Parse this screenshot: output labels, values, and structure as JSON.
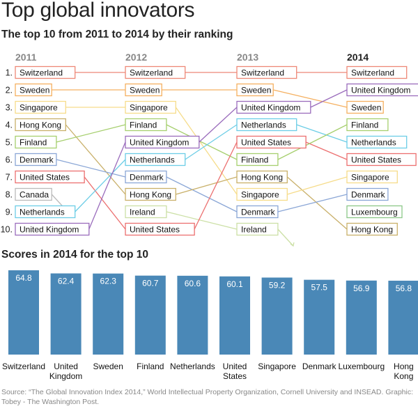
{
  "title": "Top global innovators",
  "subtitle": "The top 10 from 2011 to 2014 by their ranking",
  "section2_title": "Scores in 2014 for the top 10",
  "source_text": "Source: “The Global Innovation Index 2014,” World Intellectual Property Organization, Cornell University and INSEAD. Graphic: Tobey - The Washington Post.",
  "chart_data": [
    {
      "type": "bump",
      "years": [
        "2011",
        "2012",
        "2013",
        "2014"
      ],
      "rank_labels": [
        "1.",
        "2.",
        "3.",
        "4.",
        "5.",
        "6.",
        "7.",
        "8.",
        "9.",
        "10."
      ],
      "rankings": {
        "2011": [
          "Switzerland",
          "Sweden",
          "Singapore",
          "Hong Kong",
          "Finland",
          "Denmark",
          "United States",
          "Canada",
          "Netherlands",
          "United Kingdom"
        ],
        "2012": [
          "Switzerland",
          "Sweden",
          "Singapore",
          "Finland",
          "United Kingdom",
          "Netherlands",
          "Denmark",
          "Hong Kong",
          "Ireland",
          "United States"
        ],
        "2013": [
          "Switzerland",
          "Sweden",
          "United Kingdom",
          "Netherlands",
          "United States",
          "Finland",
          "Hong Kong",
          "Singapore",
          "Denmark",
          "Ireland"
        ],
        "2014": [
          "Switzerland",
          "United Kingdom",
          "Sweden",
          "Finland",
          "Netherlands",
          "United States",
          "Singapore",
          "Denmark",
          "Luxembourg",
          "Hong Kong"
        ]
      },
      "colors": {
        "Switzerland": "#ee8877",
        "Sweden": "#f5b060",
        "Singapore": "#f6dc8a",
        "Hong Kong": "#c9b06a",
        "Finland": "#a6cf6e",
        "Denmark": "#8aa6d6",
        "United States": "#ec6f6f",
        "Canada": "#bbbbbb",
        "Netherlands": "#6ccde6",
        "United Kingdom": "#9a6cbc",
        "Ireland": "#cce0a6",
        "Luxembourg": "#8cc888"
      }
    },
    {
      "type": "bar",
      "categories": [
        "Switzerland",
        "United Kingdom",
        "Sweden",
        "Finland",
        "Netherlands",
        "United States",
        "Singapore",
        "Denmark",
        "Luxembourg",
        "Hong Kong"
      ],
      "category_lines": [
        [
          "Switzerland"
        ],
        [
          "United",
          "Kingdom"
        ],
        [
          "Sweden"
        ],
        [
          "Finland"
        ],
        [
          "Netherlands"
        ],
        [
          "United",
          "States"
        ],
        [
          "Singapore"
        ],
        [
          "Denmark"
        ],
        [
          "Luxembourg"
        ],
        [
          "Hong",
          "Kong"
        ]
      ],
      "values": [
        64.8,
        62.4,
        62.3,
        60.7,
        60.6,
        60.1,
        59.2,
        57.5,
        56.9,
        56.8
      ],
      "value_labels": [
        "64.8",
        "62.4",
        "62.3",
        "60.7",
        "60.6",
        "60.1",
        "59.2",
        "57.5",
        "56.9",
        "56.8"
      ],
      "bar_color": "#4a88b7"
    }
  ],
  "year_label_color": "#888888",
  "year_label_last_color": "#222222"
}
